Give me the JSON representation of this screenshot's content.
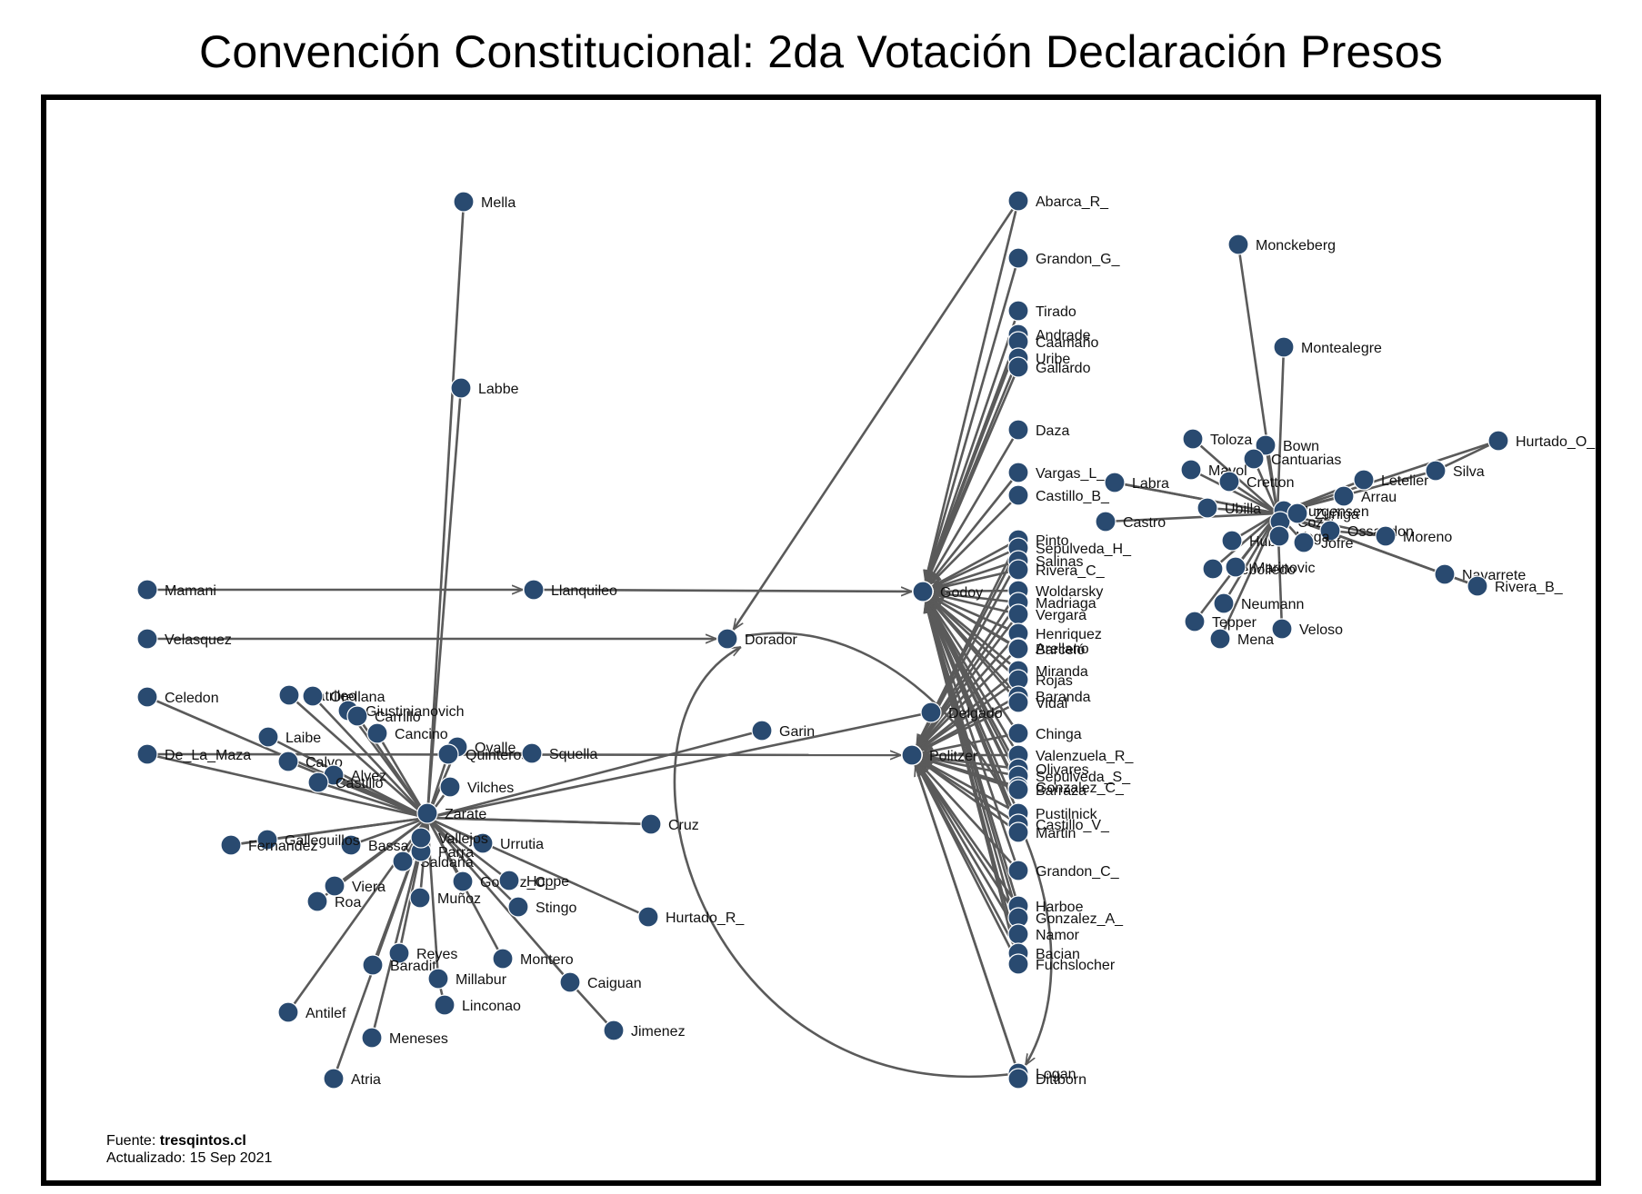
{
  "title": "Convención Constitucional: 2da Votación Declaración Presos",
  "footer": {
    "source_label": "Fuente: ",
    "source_site": "tresqintos.cl",
    "updated": "Actualizado: 15 Sep 2021"
  },
  "colors": {
    "node": "#294a70",
    "edge": "#5a5a5a",
    "frame": "#000000"
  },
  "graph": {
    "hubs": [
      "Godoy",
      "Politzer",
      "Dorador",
      "Llanquileo",
      "Garin",
      "Delgado"
    ],
    "nodes": [
      "Mella",
      "Labbe",
      "Mamani",
      "Llanquileo",
      "Velasquez",
      "Dorador",
      "Celedon",
      "De_La_Maza",
      "Catrileo",
      "Orellana",
      "Giustinianovich",
      "Carrillo",
      "Cancino",
      "Laibe",
      "Calvo",
      "Alvez",
      "Castillo",
      "Ovalle",
      "Quinteros",
      "Squella",
      "Vilches",
      "Cruz",
      "Garin",
      "Urrutia",
      "Bassa",
      "Galleguillos",
      "Fernandez",
      "Viera",
      "Roa",
      "Saldaña",
      "Parra",
      "Gomez_C_",
      "Hoppe",
      "Muñoz",
      "Stingo",
      "Hurtado_R_",
      "Reyes",
      "Baradit",
      "Millabur",
      "Montero",
      "Caiguan",
      "Linconao",
      "Jimenez",
      "Antilef",
      "Meneses",
      "Atria",
      "Vallejos",
      "Zarate",
      "Godoy",
      "Politzer",
      "Delgado",
      "Abarca_R_",
      "Grandon_G_",
      "Tirado",
      "Andrade",
      "Caamaño",
      "Uribe",
      "Gallardo",
      "Daza",
      "Vargas_L_",
      "Castillo_B_",
      "Pinto",
      "Sepulveda_H_",
      "Salinas",
      "Rivera_C_",
      "Woldarsky",
      "Madriaga",
      "Vergara",
      "Henriquez",
      "Arellano",
      "Barceló",
      "Miranda",
      "Rojas",
      "Baranda",
      "Vidal",
      "Chinga",
      "Valenzuela_R_",
      "Olivares",
      "Sepulveda_S_",
      "Gonzalez_C_",
      "Barraza",
      "Pustilnick",
      "Castillo_V_",
      "Martin",
      "Grandon_C_",
      "Harboe",
      "Gonzalez_A_",
      "Namor",
      "Bacian",
      "Fuchslocher",
      "Logan",
      "Dittborn",
      "Monckeberg",
      "Montealegre",
      "Hurtado_O_",
      "Toloza",
      "Bown",
      "Cantuarias",
      "Mayol",
      "Cretton",
      "Labra",
      "Letelier",
      "Silva",
      "Arrau",
      "Castro",
      "Ubilla",
      "Jurgensen",
      "Cozzi",
      "Zuñiga",
      "Ossandon",
      "Moreno",
      "Hube",
      "Vega",
      "Jofre",
      "Rebolledo",
      "Marinovic",
      "Neumann",
      "Tepper",
      "Mena",
      "Veloso",
      "Navarrete",
      "Rivera_B_"
    ]
  }
}
